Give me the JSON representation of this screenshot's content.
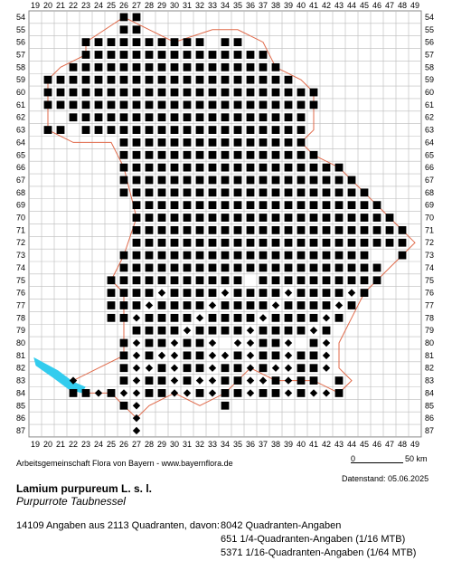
{
  "map": {
    "x_labels": [
      "19",
      "20",
      "21",
      "22",
      "23",
      "24",
      "25",
      "26",
      "27",
      "28",
      "29",
      "30",
      "31",
      "32",
      "33",
      "34",
      "35",
      "36",
      "37",
      "38",
      "39",
      "40",
      "41",
      "42",
      "43",
      "44",
      "45",
      "46",
      "47",
      "48",
      "49"
    ],
    "y_labels": [
      "54",
      "55",
      "56",
      "57",
      "58",
      "59",
      "60",
      "61",
      "62",
      "63",
      "64",
      "65",
      "66",
      "67",
      "68",
      "69",
      "70",
      "71",
      "72",
      "73",
      "74",
      "75",
      "76",
      "77",
      "78",
      "79",
      "80",
      "81",
      "82",
      "83",
      "84",
      "85",
      "86",
      "87"
    ],
    "colors": {
      "grid": "#bbbbbb",
      "marker": "#000000",
      "border": "#e06a4a",
      "water": "#33ccee",
      "frame": "#888888"
    }
  },
  "title": "Lamium purpureum L. s. l.",
  "subtitle": "Purpurrote Taubnessel",
  "credit": "Arbeitsgemeinschaft Flora von Bayern - www.bayernflora.de",
  "scale": {
    "zero": "0",
    "fifty": "50 km"
  },
  "date": "Datenstand: 05.06.2025",
  "stats": {
    "main": "14109 Angaben aus 2113 Quadranten, davon:",
    "lines": [
      "8042 Quadranten-Angaben",
      "651 1/4-Quadranten-Angaben (1/16 MTB)",
      "5371 1/16-Quadranten-Angaben (1/64 MTB)"
    ]
  }
}
